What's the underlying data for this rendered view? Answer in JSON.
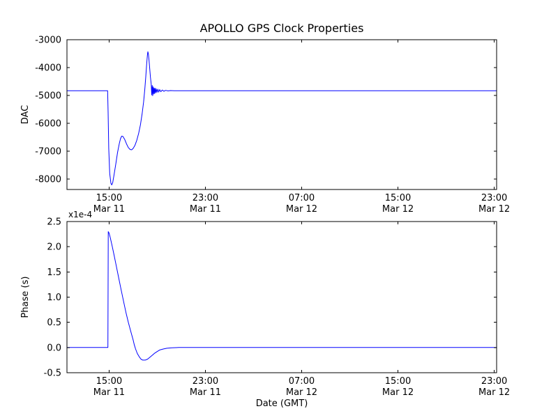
{
  "figure": {
    "title": "APOLLO GPS Clock Properties",
    "xlabel": "Date (GMT)",
    "background": "#ffffff",
    "axis_color": "#000000",
    "line_color": "#0000ff"
  },
  "chart_data": [
    {
      "type": "line",
      "title": "APOLLO GPS Clock Properties",
      "ylabel": "DAC",
      "xlabel": "",
      "x_unit": "hours since Mar 11 00:00 GMT",
      "xlim": [
        11.5,
        47.2
      ],
      "ylim": [
        -8375,
        -3000
      ],
      "grid": false,
      "yticks": [
        -8000,
        -7000,
        -6000,
        -5000,
        -4000,
        -3000
      ],
      "ytick_labels": [
        "-8000",
        "-7000",
        "-6000",
        "-5000",
        "-4000",
        "-3000"
      ],
      "xticks": [
        {
          "x": 15,
          "time": "15:00",
          "date": "Mar 11"
        },
        {
          "x": 23,
          "time": "23:00",
          "date": "Mar 11"
        },
        {
          "x": 31,
          "time": "07:00",
          "date": "Mar 12"
        },
        {
          "x": 39,
          "time": "15:00",
          "date": "Mar 12"
        },
        {
          "x": 47,
          "time": "23:00",
          "date": "Mar 12"
        }
      ],
      "series": [
        {
          "name": "DAC",
          "color": "#0000ff",
          "points": [
            [
              11.5,
              -4830
            ],
            [
              14.88,
              -4830
            ],
            [
              14.92,
              -5600
            ],
            [
              14.97,
              -6900
            ],
            [
              15.05,
              -7800
            ],
            [
              15.15,
              -8150
            ],
            [
              15.22,
              -8210
            ],
            [
              15.3,
              -8130
            ],
            [
              15.4,
              -7880
            ],
            [
              15.55,
              -7480
            ],
            [
              15.7,
              -7050
            ],
            [
              15.85,
              -6720
            ],
            [
              15.95,
              -6550
            ],
            [
              16.05,
              -6460
            ],
            [
              16.15,
              -6470
            ],
            [
              16.3,
              -6580
            ],
            [
              16.45,
              -6740
            ],
            [
              16.6,
              -6870
            ],
            [
              16.75,
              -6940
            ],
            [
              16.88,
              -6950
            ],
            [
              17.0,
              -6900
            ],
            [
              17.15,
              -6790
            ],
            [
              17.3,
              -6610
            ],
            [
              17.45,
              -6370
            ],
            [
              17.6,
              -6060
            ],
            [
              17.75,
              -5650
            ],
            [
              17.87,
              -5230
            ],
            [
              17.97,
              -4780
            ],
            [
              18.05,
              -4330
            ],
            [
              18.12,
              -3900
            ],
            [
              18.18,
              -3560
            ],
            [
              18.22,
              -3430
            ],
            [
              18.27,
              -3520
            ],
            [
              18.32,
              -3750
            ],
            [
              18.38,
              -4050
            ],
            [
              18.44,
              -4350
            ],
            [
              18.5,
              -4600
            ],
            [
              18.54,
              -4980
            ],
            [
              18.58,
              -4640
            ],
            [
              18.62,
              -5010
            ],
            [
              18.66,
              -4690
            ],
            [
              18.7,
              -4950
            ],
            [
              18.74,
              -4730
            ],
            [
              18.78,
              -4930
            ],
            [
              18.82,
              -4740
            ],
            [
              18.87,
              -4910
            ],
            [
              18.92,
              -4760
            ],
            [
              18.98,
              -4890
            ],
            [
              19.05,
              -4775
            ],
            [
              19.12,
              -4880
            ],
            [
              19.2,
              -4790
            ],
            [
              19.3,
              -4865
            ],
            [
              19.42,
              -4805
            ],
            [
              19.55,
              -4850
            ],
            [
              19.7,
              -4818
            ],
            [
              19.9,
              -4838
            ],
            [
              20.1,
              -4826
            ],
            [
              20.4,
              -4832
            ],
            [
              21.0,
              -4830
            ],
            [
              47.2,
              -4830
            ]
          ]
        }
      ]
    },
    {
      "type": "line",
      "title": "",
      "ylabel": "Phase (s)",
      "xlabel": "Date (GMT)",
      "offset_text": "x1e-4",
      "x_unit": "hours since Mar 11 00:00 GMT",
      "y_unit": "1e-4 s",
      "xlim": [
        11.5,
        47.2
      ],
      "ylim": [
        -0.5,
        2.5
      ],
      "grid": false,
      "yticks": [
        -0.5,
        0.0,
        0.5,
        1.0,
        1.5,
        2.0,
        2.5
      ],
      "ytick_labels": [
        "-0.5",
        "0.0",
        "0.5",
        "1.0",
        "1.5",
        "2.0",
        "2.5"
      ],
      "xticks": [
        {
          "x": 15,
          "time": "15:00",
          "date": "Mar 11"
        },
        {
          "x": 23,
          "time": "23:00",
          "date": "Mar 11"
        },
        {
          "x": 31,
          "time": "07:00",
          "date": "Mar 12"
        },
        {
          "x": 39,
          "time": "15:00",
          "date": "Mar 12"
        },
        {
          "x": 47,
          "time": "23:00",
          "date": "Mar 12"
        }
      ],
      "series": [
        {
          "name": "Phase",
          "color": "#0000ff",
          "points": [
            [
              11.5,
              0
            ],
            [
              14.9,
              0
            ],
            [
              14.93,
              2.3
            ],
            [
              15.0,
              2.27
            ],
            [
              15.1,
              2.18
            ],
            [
              15.25,
              2.02
            ],
            [
              15.4,
              1.85
            ],
            [
              15.6,
              1.62
            ],
            [
              15.8,
              1.38
            ],
            [
              16.0,
              1.15
            ],
            [
              16.2,
              0.92
            ],
            [
              16.4,
              0.7
            ],
            [
              16.6,
              0.5
            ],
            [
              16.8,
              0.32
            ],
            [
              17.0,
              0.15
            ],
            [
              17.1,
              0.05
            ],
            [
              17.2,
              -0.03
            ],
            [
              17.35,
              -0.12
            ],
            [
              17.5,
              -0.18
            ],
            [
              17.65,
              -0.23
            ],
            [
              17.8,
              -0.25
            ],
            [
              18.0,
              -0.25
            ],
            [
              18.2,
              -0.23
            ],
            [
              18.4,
              -0.19
            ],
            [
              18.6,
              -0.15
            ],
            [
              18.8,
              -0.11
            ],
            [
              19.0,
              -0.08
            ],
            [
              19.2,
              -0.05
            ],
            [
              19.5,
              -0.03
            ],
            [
              19.8,
              -0.015
            ],
            [
              20.2,
              -0.005
            ],
            [
              20.8,
              0
            ],
            [
              47.2,
              0
            ]
          ]
        }
      ]
    }
  ]
}
